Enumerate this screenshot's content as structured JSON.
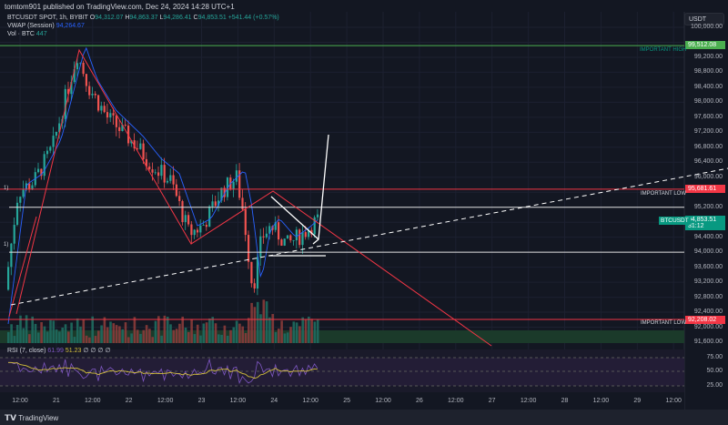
{
  "header": {
    "publish_text": "tomtom901 published on TradingView.com, Dec 24, 2024 14:28 UTC+1"
  },
  "legend": {
    "symbol": "BTCUSDT SPOT, 1h, BYBIT",
    "open_label": "O",
    "open": "94,312.07",
    "high_label": "H",
    "high": "94,863.37",
    "low_label": "L",
    "low": "94,286.41",
    "close_label": "C",
    "close": "94,853.51",
    "change": "+541.44 (+0.57%)",
    "vwap_label": "VWAP (Session)",
    "vwap": "94,264.67",
    "vol_label": "Vol · BTC",
    "vol": "447"
  },
  "rsi": {
    "label": "RSI (7, close)",
    "value": "61.99",
    "ma": "51.23",
    "extra": "∅ ∅ ∅ ∅",
    "levels": [
      "75.00",
      "50.00",
      "25.00"
    ]
  },
  "price_axis": {
    "currency": "USDT",
    "ticks": [
      "100,000.00",
      "99,200.00",
      "98,800.00",
      "98,400.00",
      "98,000.00",
      "97,600.00",
      "97,200.00",
      "96,800.00",
      "96,400.00",
      "96,000.00",
      "95,200.00",
      "94,400.00",
      "94,000.00",
      "93,600.00",
      "93,200.00",
      "92,800.00",
      "92,400.00",
      "92,000.00",
      "91,600.00"
    ]
  },
  "tags": {
    "important_high": "99,512.08",
    "important_low_top": "95,681.61",
    "symbol": "BTCUSDT",
    "current": "94,853.51",
    "countdown": "31:12",
    "important_low_bottom": "92,208.02"
  },
  "annotations": {
    "important_high": "IMPORTANT HIGH",
    "important_low_1": "IMPORTANT LOW",
    "important_low_2": "IMPORTANT LOW",
    "marker_1": "1)",
    "marker_2": "1)"
  },
  "time_axis": [
    "12:00",
    "21",
    "12:00",
    "22",
    "12:00",
    "23",
    "12:00",
    "24",
    "12:00",
    "25",
    "12:00",
    "26",
    "12:00",
    "27",
    "12:00",
    "28",
    "12:00",
    "29",
    "12:00"
  ],
  "footer": {
    "brand": "TradingView"
  },
  "colors": {
    "up": "#26a69a",
    "down": "#ef5350",
    "red_line": "#f23645",
    "green_line": "#4caf50",
    "vwap": "#2962ff",
    "rsi": "#7e57c2",
    "rsi_ma": "#d4c03a"
  }
}
